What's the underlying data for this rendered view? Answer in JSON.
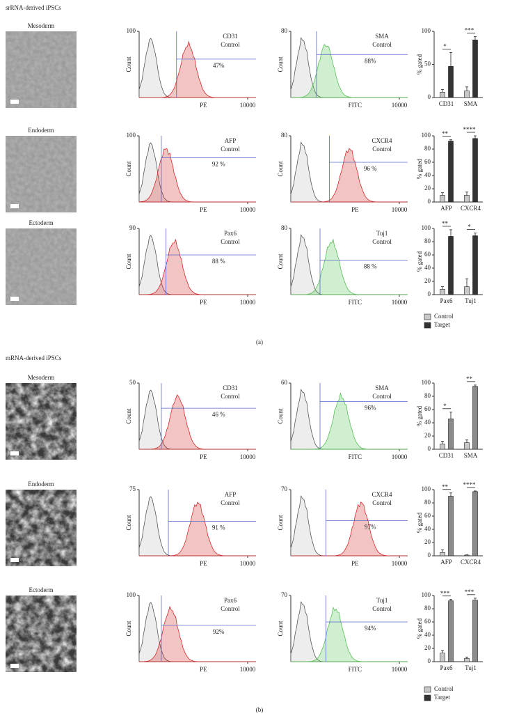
{
  "panels": [
    {
      "title": "srRNA-derived iPSCs",
      "label": "(a)",
      "legend": {
        "labels": [
          "Control",
          "Target"
        ],
        "colors": [
          "#c8c8c8",
          "#333333"
        ]
      },
      "rows": [
        {
          "layer": "Mesoderm",
          "histograms": [
            {
              "marker": "CD31",
              "color": "#d42a2a",
              "control": "Control",
              "ylabel": "Count",
              "ytick": 100,
              "xlabel": "PE",
              "xmax": 10000,
              "percent": {
                "value": 47,
                "label": "47%"
              }
            },
            {
              "marker": "SMA",
              "color": "#55c155",
              "control": "Control",
              "ylabel": "Count",
              "ytick": 80,
              "xlabel": "FITC",
              "xmax": 10000,
              "percent": {
                "value": 88,
                "label": "88%"
              }
            }
          ],
          "bars": {
            "ylabel": "% gated",
            "ylim": [
              0,
              100
            ],
            "yticks": [
              0,
              50,
              100
            ],
            "categories": [
              "CD31",
              "SMA"
            ],
            "colors": [
              "#c8c8c8",
              "#333333"
            ],
            "control": [
              8,
              10
            ],
            "control_err": [
              4,
              6
            ],
            "target": [
              47,
              87
            ],
            "target_err": [
              21,
              5
            ],
            "stars": [
              "*",
              "***"
            ]
          }
        },
        {
          "layer": "Endoderm",
          "histograms": [
            {
              "marker": "AFP",
              "color": "#d42a2a",
              "control": "Control",
              "ylabel": "Count",
              "ytick": 100,
              "xlabel": "PE",
              "xmax": 10000,
              "percent": {
                "value": 92,
                "label": "92 %"
              }
            },
            {
              "marker": "CXCR4",
              "color": "#d42a2a",
              "control": "Control",
              "ylabel": "Count",
              "ytick": 80,
              "xlabel": "PE",
              "xmax": 10000,
              "percent": {
                "value": 96,
                "label": "96 %"
              }
            }
          ],
          "bars": {
            "ylabel": "% gated",
            "ylim": [
              0,
              100
            ],
            "yticks": [
              0,
              20,
              40,
              60,
              80,
              100
            ],
            "categories": [
              "AFP",
              "CXCR4"
            ],
            "colors": [
              "#c8c8c8",
              "#333333"
            ],
            "control": [
              10,
              10
            ],
            "control_err": [
              4,
              5
            ],
            "target": [
              92,
              96
            ],
            "target_err": [
              2,
              4
            ],
            "stars": [
              "**",
              "****"
            ]
          }
        },
        {
          "layer": "Ectoderm",
          "histograms": [
            {
              "marker": "Pax6",
              "color": "#d42a2a",
              "control": "Control",
              "ylabel": "Count",
              "ytick": 90,
              "xlabel": "PE",
              "xmax": 10000,
              "percent": {
                "value": 88,
                "label": "88 %"
              }
            },
            {
              "marker": "Tuj1",
              "color": "#55c155",
              "control": "Control",
              "ylabel": "Count",
              "ytick": 80,
              "xlabel": "FITC",
              "xmax": 10000,
              "percent": {
                "value": 88,
                "label": "88 %"
              }
            }
          ],
          "bars": {
            "ylabel": "% gated",
            "ylim": [
              0,
              100
            ],
            "yticks": [
              0,
              20,
              40,
              60,
              80,
              100
            ],
            "categories": [
              "Pax6",
              "Tuj1"
            ],
            "colors": [
              "#c8c8c8",
              "#333333"
            ],
            "control": [
              8,
              12
            ],
            "control_err": [
              4,
              12
            ],
            "target": [
              88,
              89
            ],
            "target_err": [
              10,
              4
            ],
            "stars": [
              "**",
              "*"
            ]
          }
        }
      ]
    },
    {
      "title": "mRNA-derived iPSCs",
      "label": "(b)",
      "legend": {
        "labels": [
          "Control",
          "Target"
        ],
        "colors": [
          "#c8c8c8",
          "#333333"
        ]
      },
      "rows": [
        {
          "layer": "Mesoderm",
          "histograms": [
            {
              "marker": "CD31",
              "color": "#d42a2a",
              "control": "Control",
              "ylabel": "Count",
              "ytick": 50,
              "xlabel": "PE",
              "xmax": 10000,
              "percent": {
                "value": 46,
                "label": "46 %"
              }
            },
            {
              "marker": "SMA",
              "color": "#55c155",
              "control": "Control",
              "ylabel": "Count",
              "ytick": 60,
              "xlabel": "FITC",
              "xmax": 10000,
              "percent": {
                "value": 96,
                "label": "96%"
              }
            }
          ],
          "bars": {
            "ylabel": "% gated",
            "ylim": [
              0,
              100
            ],
            "yticks": [
              0,
              20,
              40,
              60,
              80,
              100
            ],
            "categories": [
              "CD31",
              "SMA"
            ],
            "colors": [
              "#c8c8c8",
              "#8a8a8a"
            ],
            "control": [
              8,
              10
            ],
            "control_err": [
              4,
              4
            ],
            "target": [
              46,
              95
            ],
            "target_err": [
              10,
              2
            ],
            "stars": [
              "*",
              "**"
            ]
          }
        },
        {
          "layer": "Endoderm",
          "histograms": [
            {
              "marker": "AFP",
              "color": "#d42a2a",
              "control": "Control",
              "ylabel": "Count",
              "ytick": 75,
              "xlabel": "PE",
              "xmax": 10000,
              "percent": {
                "value": 91,
                "label": "91 %"
              }
            },
            {
              "marker": "CXCR4",
              "color": "#d42a2a",
              "control": "Control",
              "ylabel": "Count",
              "ytick": 70,
              "xlabel": "PE",
              "xmax": 10000,
              "percent": {
                "value": 97,
                "label": "97%"
              }
            }
          ],
          "bars": {
            "ylabel": "% gated",
            "ylim": [
              0,
              100
            ],
            "yticks": [
              0,
              20,
              40,
              60,
              80,
              100
            ],
            "categories": [
              "AFP",
              "CXCR4"
            ],
            "colors": [
              "#c8c8c8",
              "#8a8a8a"
            ],
            "control": [
              5,
              1
            ],
            "control_err": [
              4,
              0.5
            ],
            "target": [
              90,
              97
            ],
            "target_err": [
              5,
              1
            ],
            "stars": [
              "**",
              "****"
            ]
          }
        },
        {
          "layer": "Ectoderm",
          "histograms": [
            {
              "marker": "Pax6",
              "color": "#d42a2a",
              "control": "Control",
              "ylabel": "Count",
              "ytick": 100,
              "xlabel": "PE",
              "xmax": 10000,
              "percent": {
                "value": 92,
                "label": "92%"
              }
            },
            {
              "marker": "Tuj1",
              "color": "#55c155",
              "control": "Control",
              "ylabel": "Count",
              "ytick": 70,
              "xlabel": "FITC",
              "xmax": 10000,
              "percent": {
                "value": 94,
                "label": "94%"
              }
            }
          ],
          "bars": {
            "ylabel": "% gated",
            "ylim": [
              0,
              100
            ],
            "yticks": [
              0,
              20,
              40,
              60,
              80,
              100
            ],
            "categories": [
              "Pax6",
              "Tuj1"
            ],
            "colors": [
              "#c8c8c8",
              "#8a8a8a"
            ],
            "control": [
              13,
              5
            ],
            "control_err": [
              4,
              2
            ],
            "target": [
              92,
              93
            ],
            "target_err": [
              2,
              3
            ],
            "stars": [
              "***",
              "***"
            ]
          }
        }
      ]
    }
  ]
}
